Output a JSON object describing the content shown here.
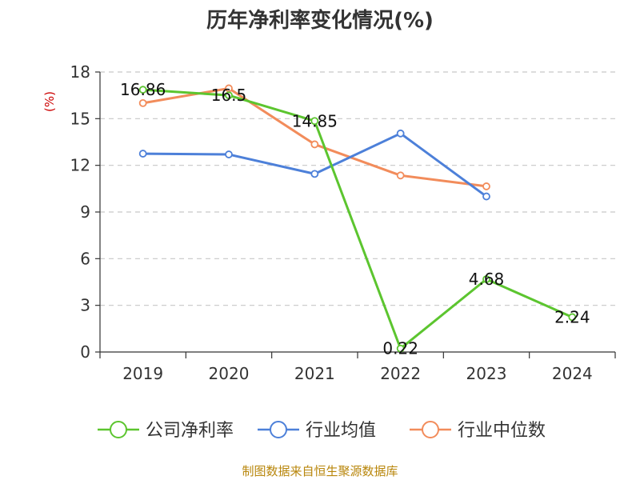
{
  "chart_data": {
    "type": "line",
    "title": "历年净利率变化情况(%)",
    "ylabel": "(%)",
    "categories": [
      "2019",
      "2020",
      "2021",
      "2022",
      "2023",
      "2024"
    ],
    "ylim": [
      0,
      18
    ],
    "yticks": [
      0,
      3,
      6,
      9,
      12,
      15,
      18
    ],
    "grid": true,
    "legend_position": "bottom",
    "series": [
      {
        "name": "公司净利率",
        "color": "#5cc52f",
        "values": [
          16.86,
          16.5,
          14.85,
          0.22,
          4.68,
          2.24
        ],
        "labels": [
          "16.86",
          "16.5",
          "14.85",
          "0.22",
          "4.68",
          "2.24"
        ]
      },
      {
        "name": "行业均值",
        "color": "#4d80d9",
        "values": [
          12.75,
          12.7,
          11.45,
          14.05,
          10.0,
          null
        ]
      },
      {
        "name": "行业中位数",
        "color": "#f28c5b",
        "values": [
          16.0,
          16.95,
          13.35,
          11.35,
          10.65,
          null
        ]
      }
    ],
    "source": "制图数据来自恒生聚源数据库"
  }
}
